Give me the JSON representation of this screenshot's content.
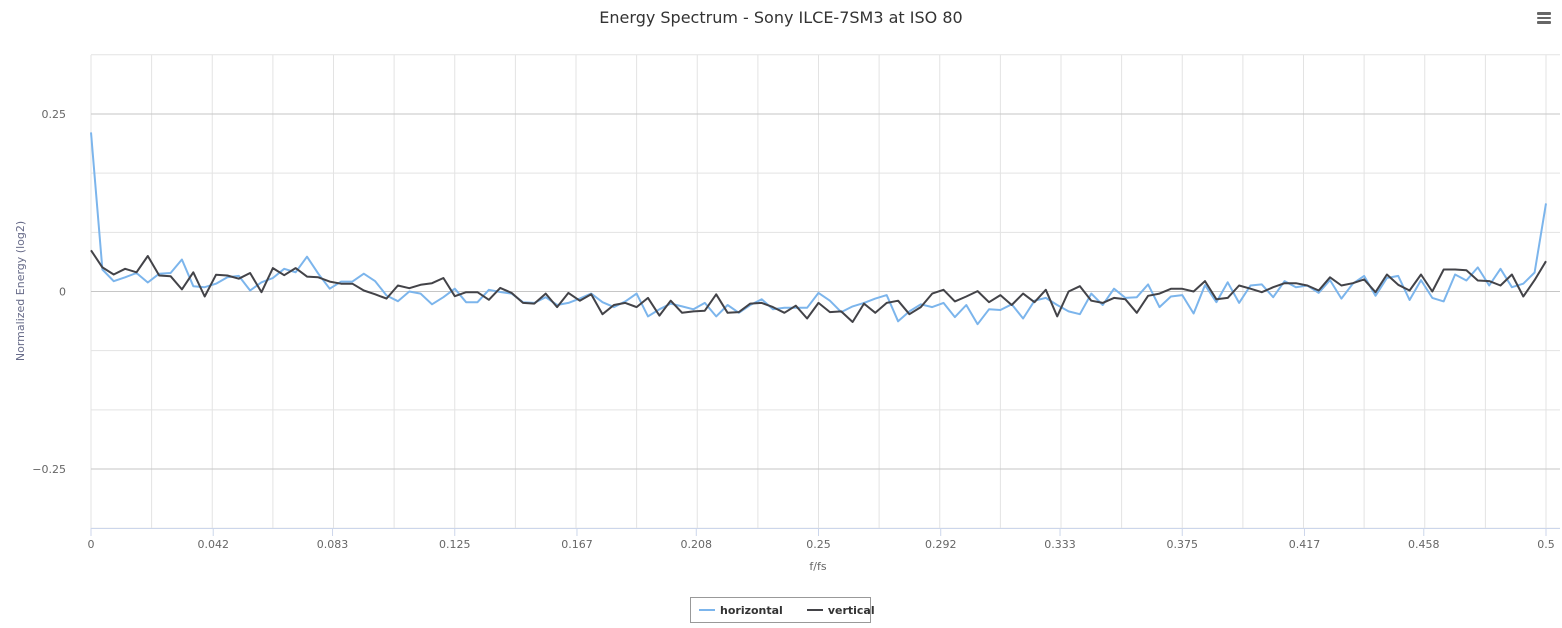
{
  "chart_data": {
    "type": "line",
    "title": "Energy Spectrum - Sony ILCE-7SM3 at ISO 80",
    "xlabel": "f/fs",
    "ylabel": "Normalized Energy (log2)",
    "xlim": [
      0,
      0.5
    ],
    "ylim": [
      -0.333,
      0.333
    ],
    "x_start": 0,
    "x_interval": 0.00390625,
    "x_ticks": [
      0,
      0.042,
      0.083,
      0.125,
      0.167,
      0.208,
      0.25,
      0.292,
      0.333,
      0.375,
      0.417,
      0.458,
      0.5
    ],
    "x_tick_labels": [
      "0",
      "0.042",
      "0.083",
      "0.125",
      "0.167",
      "0.208",
      "0.25",
      "0.292",
      "0.333",
      "0.375",
      "0.417",
      "0.458",
      "0.5"
    ],
    "y_ticks": [
      -0.25,
      0,
      0.25
    ],
    "y_tick_labels": [
      "−0.25",
      "0",
      "0.25"
    ],
    "grid": true,
    "legend_position": "bottom-center",
    "series": [
      {
        "name": "horizontal",
        "color": "#7cb5ec",
        "values": [
          0.224,
          0.031,
          0.0145,
          0.02,
          0.026,
          0.0127,
          0.025,
          0.026,
          0.045,
          0.0075,
          0.006,
          0.011,
          0.02,
          0.022,
          0.0014,
          0.013,
          0.019,
          0.032,
          0.027,
          0.049,
          0.025,
          0.004,
          0.014,
          0.014,
          0.025,
          0.0145,
          -0.0056,
          -0.0136,
          0,
          -0.003,
          -0.018,
          -0.008,
          0.004,
          -0.015,
          -0.015,
          0.0024,
          -0.0007,
          -0.003,
          -0.015,
          -0.016,
          -0.008,
          -0.019,
          -0.016,
          -0.01,
          -0.003,
          -0.015,
          -0.022,
          -0.014,
          -0.003,
          -0.035,
          -0.025,
          -0.017,
          -0.021,
          -0.025,
          -0.016,
          -0.035,
          -0.019,
          -0.03,
          -0.019,
          -0.011,
          -0.025,
          -0.023,
          -0.023,
          -0.023,
          -0.002,
          -0.013,
          -0.029,
          -0.021,
          -0.016,
          -0.01,
          -0.005,
          -0.042,
          -0.028,
          -0.018,
          -0.022,
          -0.016,
          -0.036,
          -0.019,
          -0.046,
          -0.025,
          -0.026,
          -0.018,
          -0.038,
          -0.013,
          -0.009,
          -0.019,
          -0.028,
          -0.032,
          -0.003,
          -0.019,
          0.004,
          -0.009,
          -0.008,
          0.01,
          -0.022,
          -0.007,
          -0.005,
          -0.031,
          0.009,
          -0.015,
          0.013,
          -0.016,
          0.0085,
          0.01,
          -0.008,
          0.0146,
          0.006,
          0.0085,
          -0.002,
          0.016,
          -0.01,
          0.011,
          0.022,
          -0.006,
          0.019,
          0.022,
          -0.012,
          0.016,
          -0.009,
          -0.014,
          0.024,
          0.0155,
          0.034,
          0.0085,
          0.032,
          0.006,
          0.011,
          0.0267,
          0.124
        ]
      },
      {
        "name": "vertical",
        "color": "#434348",
        "values": [
          0.058,
          0.034,
          0.024,
          0.032,
          0.027,
          0.05,
          0.0225,
          0.0215,
          0.003,
          0.027,
          -0.007,
          0.0235,
          0.0225,
          0.018,
          0.026,
          -0.001,
          0.033,
          0.023,
          0.033,
          0.021,
          0.02,
          0.014,
          0.011,
          0.011,
          0.0014,
          -0.004,
          -0.01,
          0.0085,
          0.0047,
          0.0094,
          0.0117,
          0.019,
          -0.0066,
          -0.001,
          -0.001,
          -0.0117,
          0.005,
          -0.002,
          -0.016,
          -0.017,
          -0.003,
          -0.022,
          -0.002,
          -0.013,
          -0.004,
          -0.032,
          -0.019,
          -0.016,
          -0.022,
          -0.009,
          -0.034,
          -0.013,
          -0.03,
          -0.028,
          -0.027,
          -0.004,
          -0.03,
          -0.029,
          -0.017,
          -0.016,
          -0.022,
          -0.03,
          -0.02,
          -0.038,
          -0.016,
          -0.029,
          -0.028,
          -0.043,
          -0.017,
          -0.03,
          -0.016,
          -0.013,
          -0.032,
          -0.022,
          -0.003,
          0.0024,
          -0.014,
          -0.007,
          0.0005,
          -0.015,
          -0.005,
          -0.019,
          -0.003,
          -0.015,
          0.0024,
          -0.035,
          0,
          0.0075,
          -0.013,
          -0.016,
          -0.009,
          -0.011,
          -0.03,
          -0.006,
          -0.003,
          0.0038,
          0.0038,
          0,
          0.0146,
          -0.011,
          -0.009,
          0.0085,
          0.004,
          -0.001,
          0.006,
          0.0117,
          0.0117,
          0.0085,
          0.0014,
          0.02,
          0.0085,
          0.0117,
          0.017,
          -0.001,
          0.024,
          0.0094,
          0.0014,
          0.024,
          0,
          0.031,
          0.031,
          0.03,
          0.0155,
          0.0146,
          0.0085,
          0.024,
          -0.007,
          0.016,
          0.0427
        ]
      }
    ]
  },
  "menu": {
    "icon": "hamburger-menu-icon"
  }
}
